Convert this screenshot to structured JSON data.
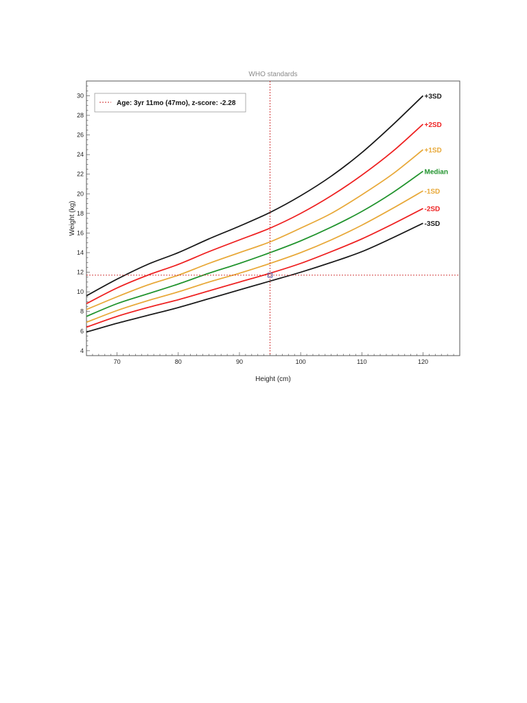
{
  "chart_data": {
    "type": "line",
    "title": "WHO standards",
    "xlabel": "Height (cm)",
    "ylabel": "Weight (kg)",
    "xlim": [
      65,
      126
    ],
    "ylim": [
      3.5,
      31.5
    ],
    "xticks": [
      70,
      80,
      90,
      100,
      110,
      120
    ],
    "yticks": [
      4,
      6,
      8,
      10,
      12,
      14,
      16,
      18,
      20,
      22,
      24,
      26,
      28,
      30
    ],
    "x": [
      65,
      70,
      75,
      80,
      85,
      90,
      95,
      100,
      105,
      110,
      115,
      120
    ],
    "series": [
      {
        "name": "+3SD",
        "color": "#1a1a1a",
        "values": [
          9.6,
          11.3,
          12.8,
          14.0,
          15.4,
          16.7,
          18.1,
          19.8,
          21.8,
          24.2,
          27.0,
          30.0
        ]
      },
      {
        "name": "+2SD",
        "color": "#ee2222",
        "values": [
          8.8,
          10.4,
          11.7,
          12.8,
          14.1,
          15.3,
          16.5,
          18.0,
          19.8,
          21.9,
          24.3,
          27.1
        ]
      },
      {
        "name": "+1SD",
        "color": "#e8a93a",
        "values": [
          8.2,
          9.5,
          10.7,
          11.7,
          12.9,
          14.0,
          15.1,
          16.5,
          18.0,
          19.9,
          22.0,
          24.5
        ]
      },
      {
        "name": "Median",
        "color": "#22942e",
        "values": [
          7.5,
          8.8,
          9.8,
          10.8,
          11.9,
          12.9,
          14.0,
          15.2,
          16.6,
          18.2,
          20.1,
          22.3
        ]
      },
      {
        "name": "-1SD",
        "color": "#e8a93a",
        "values": [
          6.9,
          8.1,
          9.1,
          10.0,
          11.0,
          11.9,
          12.9,
          14.0,
          15.3,
          16.8,
          18.5,
          20.3
        ]
      },
      {
        "name": "-2SD",
        "color": "#ee2222",
        "values": [
          6.4,
          7.5,
          8.4,
          9.2,
          10.1,
          11.0,
          11.9,
          12.9,
          14.1,
          15.4,
          16.9,
          18.5
        ]
      },
      {
        "name": "-3SD",
        "color": "#1a1a1a",
        "values": [
          5.9,
          6.8,
          7.6,
          8.4,
          9.3,
          10.2,
          11.1,
          12.0,
          13.0,
          14.1,
          15.5,
          17.0
        ]
      }
    ],
    "marker": {
      "x": 95,
      "y": 11.7,
      "color": "#cc2222"
    },
    "legend": {
      "text": "Age: 3yr 11mo (47mo), z-score: -2.28",
      "position": "top-left"
    },
    "grid": false
  }
}
